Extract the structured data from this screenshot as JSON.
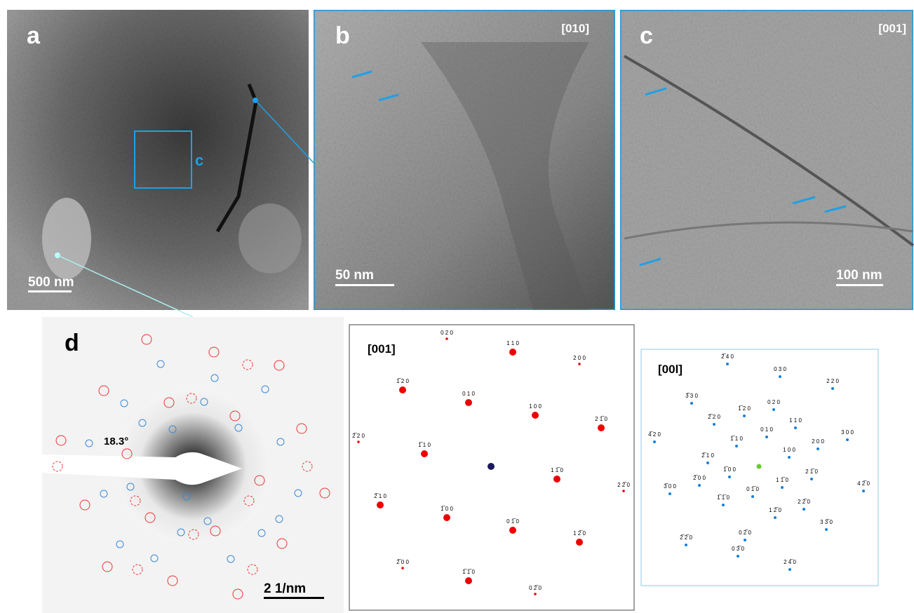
{
  "panels": {
    "a": {
      "label": "a",
      "scale": "500 nm",
      "box_label": "c"
    },
    "b": {
      "label": "b",
      "zone": "[010]",
      "scale": "50 nm"
    },
    "c": {
      "label": "c",
      "zone": "[001]",
      "scale": "100 nm"
    },
    "d": {
      "label": "d",
      "angle": "18.3°",
      "scale": "2 1/nm"
    }
  },
  "patterns": [
    {
      "zone": "[001]",
      "spots": [
        "0 2 0",
        "1 1 0",
        "2 0 0",
        "1̅ 2 0",
        "0 1 0",
        "1 0 0",
        "2 1̅ 0",
        "2̅ 2 0",
        "1̅ 1 0",
        "1 1̅ 0",
        "2 2̅ 0",
        "2̅ 1 0",
        "1̅ 0 0",
        "0 1̅ 0",
        "1 2̅ 0",
        "2̅ 0 0",
        "1̅ 1̅ 0",
        "0 2̅ 0"
      ]
    },
    {
      "zone": "[00l]",
      "spots": [
        "2̅ 4 0",
        "0 3 0",
        "2 2 0",
        "3̅ 3 0",
        "2̅ 2 0",
        "1̅ 2 0",
        "0 2 0",
        "1 1 0",
        "4̅ 2 0",
        "1̅ 1 0",
        "0 1 0",
        "3 0 0",
        "2̅ 1 0",
        "1 0 0",
        "2 0 0",
        "1̅ 0 0",
        "2 1̅ 0",
        "1 1̅ 0",
        "3̅ 0 0",
        "2̅ 0 0",
        "0 1̅ 0",
        "1̅ 1̅ 0",
        "4 2̅ 0",
        "1 2̅ 0",
        "2 2̅ 0",
        "0 2̅ 0",
        "3 3̅ 0",
        "2̅ 2̅ 0",
        "0 3̅ 0",
        "2 4̅ 0"
      ]
    }
  ]
}
